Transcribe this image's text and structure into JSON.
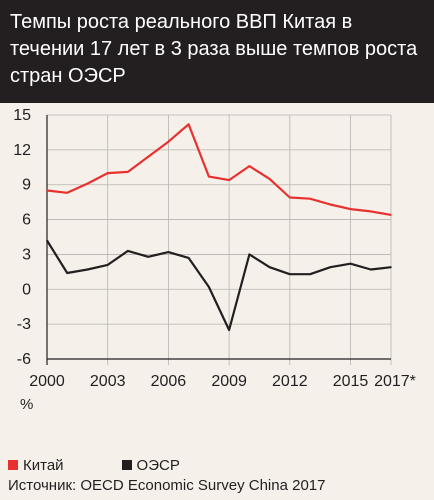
{
  "title": "Темпы роста реального ВВП Китая в течении 17 лет в 3 раза выше темпов роста стран ОЭСР",
  "source": "Источник: OECD Economic Survey China 2017",
  "chart_data": {
    "type": "line",
    "title": "Темпы роста реального ВВП Китая в течении 17 лет в 3 раза выше темпов роста стран ОЭСР",
    "xlabel": "",
    "ylabel": "%",
    "x": [
      2000,
      2001,
      2002,
      2003,
      2004,
      2005,
      2006,
      2007,
      2008,
      2009,
      2010,
      2011,
      2012,
      2013,
      2014,
      2015,
      2016,
      2017
    ],
    "x_tick_values": [
      2000,
      2003,
      2006,
      2009,
      2012,
      2015,
      2017
    ],
    "x_tick_labels": [
      "2000",
      "2003",
      "2006",
      "2009",
      "2012",
      "2015",
      "2017*"
    ],
    "y_ticks": [
      15,
      12,
      9,
      6,
      3,
      0,
      -3,
      -6
    ],
    "ylim": [
      -6,
      15
    ],
    "xlim": [
      2000,
      2017
    ],
    "grid": "horizontal",
    "legend_position": "bottom-left",
    "series": [
      {
        "name": "Китай",
        "color": "#e8312f",
        "values": [
          8.5,
          8.3,
          9.1,
          10.0,
          10.1,
          11.4,
          12.7,
          14.2,
          9.7,
          9.4,
          10.6,
          9.5,
          7.9,
          7.8,
          7.3,
          6.9,
          6.7,
          6.4
        ]
      },
      {
        "name": "ОЭСР",
        "color": "#231f20",
        "values": [
          4.2,
          1.4,
          1.7,
          2.1,
          3.3,
          2.8,
          3.2,
          2.7,
          0.2,
          -3.5,
          3.0,
          1.9,
          1.3,
          1.3,
          1.9,
          2.2,
          1.7,
          1.9
        ]
      }
    ]
  }
}
